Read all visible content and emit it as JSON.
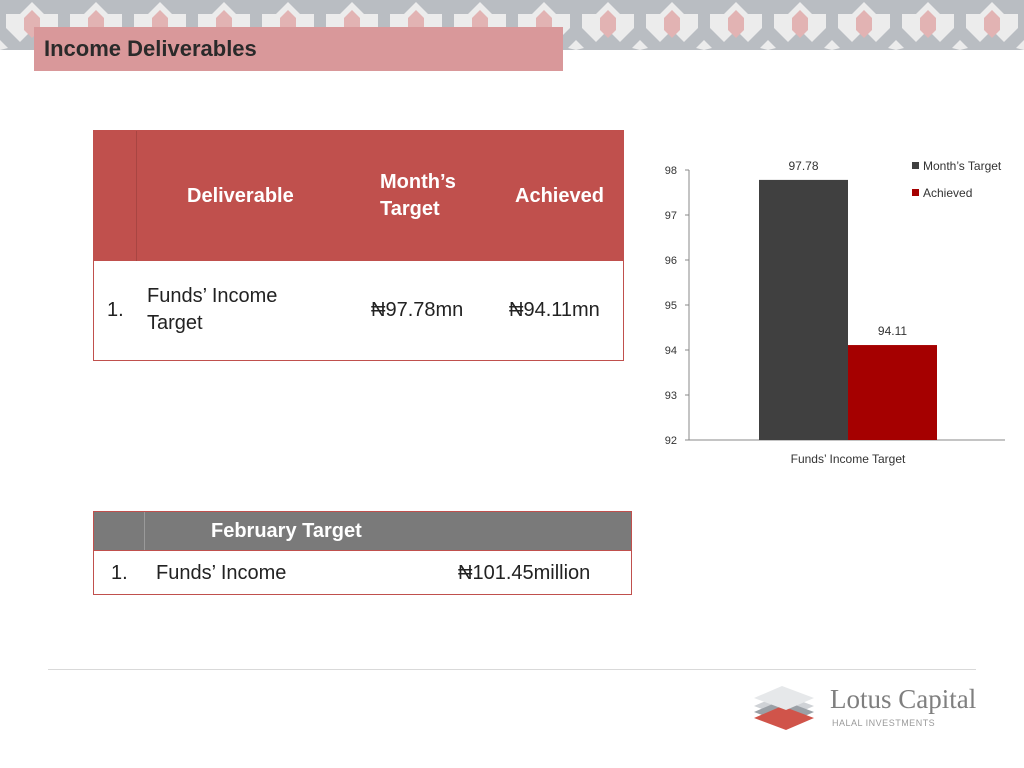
{
  "header": {
    "title": "Income Deliverables"
  },
  "deliverables_table": {
    "headers": {
      "deliverable": "Deliverable",
      "month_target": "Month’s Target",
      "achieved": "Achieved"
    },
    "rows": [
      {
        "index": "1.",
        "deliverable": "Funds’ Income Target",
        "month_target": "₦97.78mn",
        "achieved": "₦94.11mn"
      }
    ]
  },
  "chart_data": {
    "type": "bar",
    "categories": [
      "Funds’ Income Target"
    ],
    "series": [
      {
        "name": "Month’s Target",
        "values": [
          97.78
        ],
        "color": "#404040"
      },
      {
        "name": "Achieved",
        "values": [
          94.11
        ],
        "color": "#a50000"
      }
    ],
    "data_labels": [
      "97.78",
      "94.11"
    ],
    "ylim": [
      92,
      98
    ],
    "yticks": [
      "92",
      "93",
      "94",
      "95",
      "96",
      "97",
      "98"
    ],
    "legend_position": "top-right",
    "title": "",
    "xlabel": "",
    "ylabel": ""
  },
  "february_table": {
    "header": "February Target",
    "rows": [
      {
        "index": "1.",
        "item": "Funds’ Income",
        "value": "₦101.45million"
      }
    ]
  },
  "footer": {
    "logo_name": "Lotus Capital",
    "logo_tagline": "HALAL INVESTMENTS"
  },
  "colors": {
    "accent": "#c0504d",
    "title_bar": "#d9989a",
    "header_grey": "#7a7a7a"
  }
}
